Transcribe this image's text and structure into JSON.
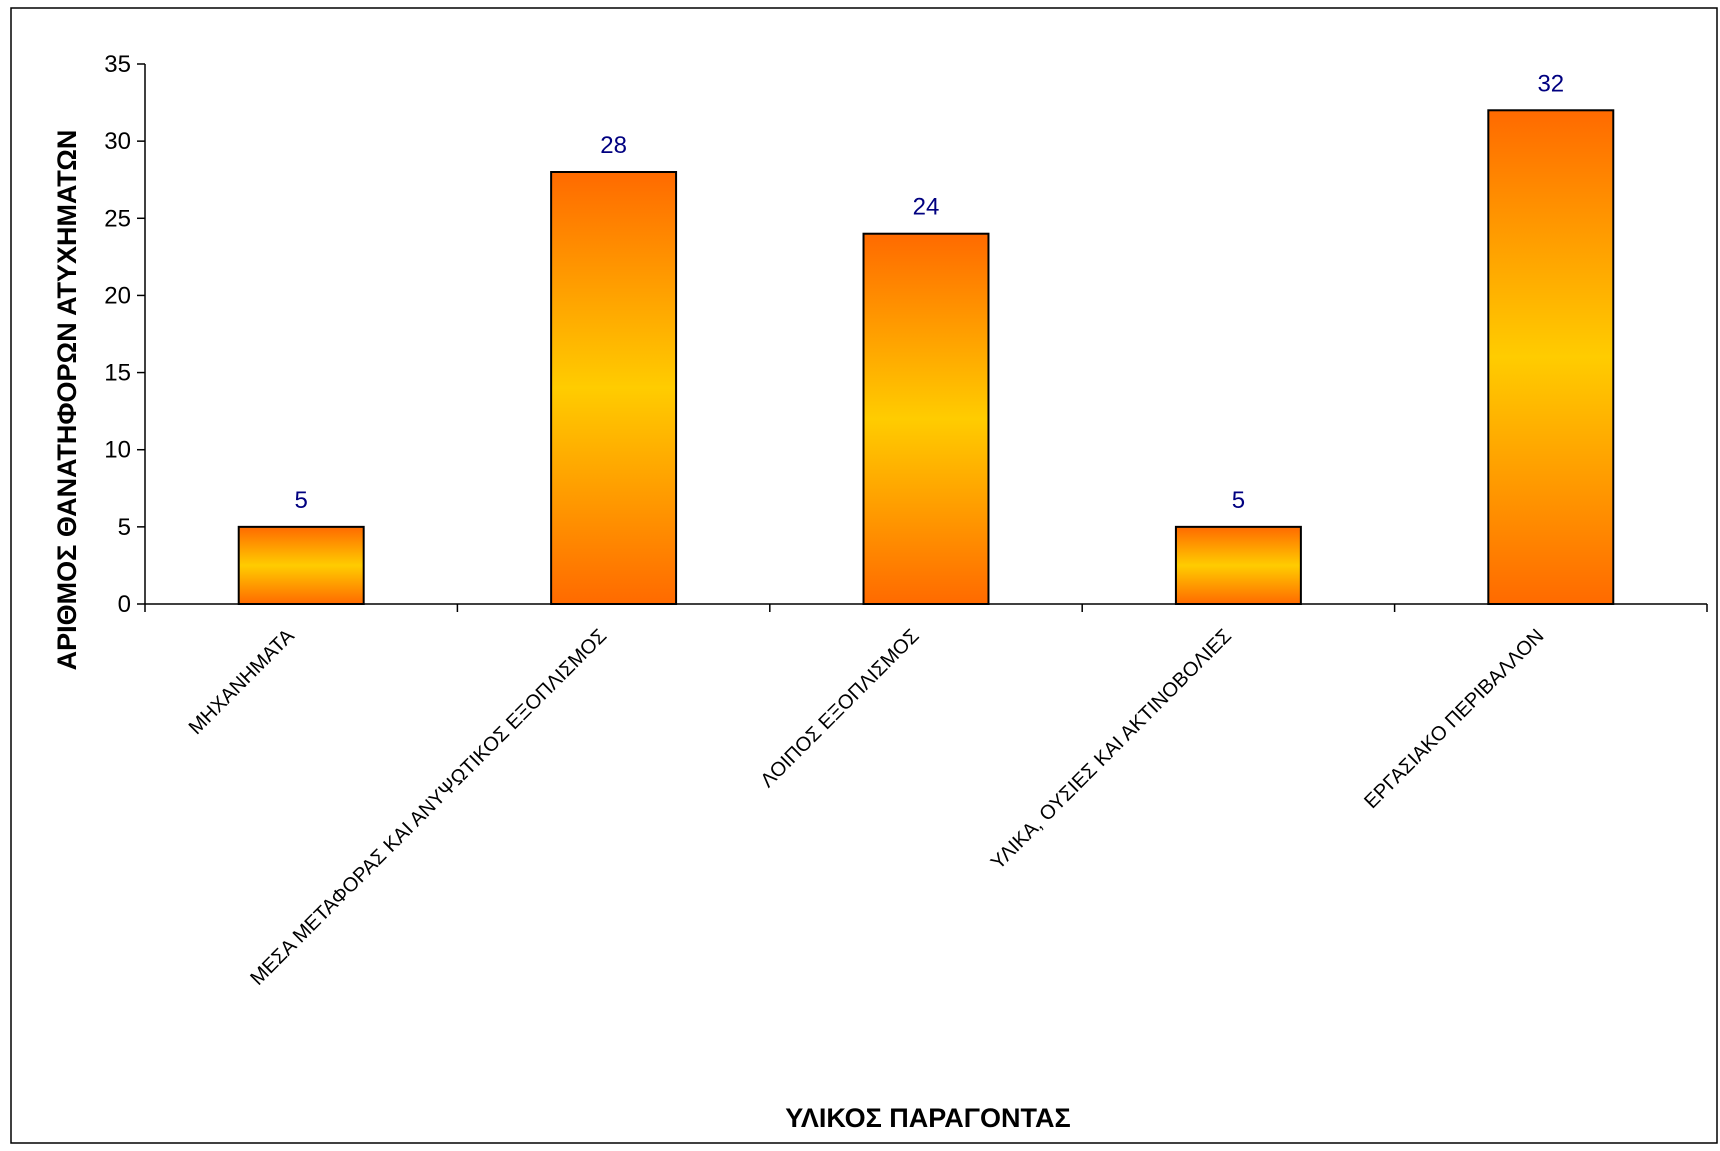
{
  "chart_data": {
    "type": "bar",
    "title": "",
    "xlabel": "ΥΛΙΚΟΣ ΠΑΡΑΓΟΝΤΑΣ",
    "ylabel": "ΑΡΙΘΜΟΣ ΘΑΝΑΤΗΦΟΡΩΝ ΑΤΥΧΗΜΑΤΩΝ",
    "categories": [
      "ΜΗΧΑΝΗΜΑΤΑ",
      "ΜΕΣΑ ΜΕΤΑΦΟΡΑΣ ΚΑΙ ΑΝΥΨΩΤΙΚΟΣ ΕΞΟΠΛΙΣΜΟΣ",
      "ΛΟΙΠΟΣ ΕΞΟΠΛΙΣΜΟΣ",
      "ΥΛΙΚΑ, ΟΥΣΙΕΣ ΚΑΙ ΑΚΤΙΝΟΒΟΛΙΕΣ",
      "ΕΡΓΑΣΙΑΚΟ ΠΕΡΙΒΑΛΛΟΝ"
    ],
    "values": [
      5,
      28,
      24,
      5,
      32
    ],
    "data_labels": [
      "5",
      "28",
      "24",
      "5",
      "32"
    ],
    "ylim": [
      0,
      35
    ],
    "yticks": [
      "0",
      "5",
      "10",
      "15",
      "20",
      "25",
      "30",
      "35"
    ],
    "grid": false,
    "legend": "none",
    "colors": {
      "bar_gradient_outer": "#FF6A00",
      "bar_gradient_center": "#FFCC00",
      "bar_outline": "#000000",
      "data_label": "#000080",
      "axis": "#000000"
    }
  }
}
